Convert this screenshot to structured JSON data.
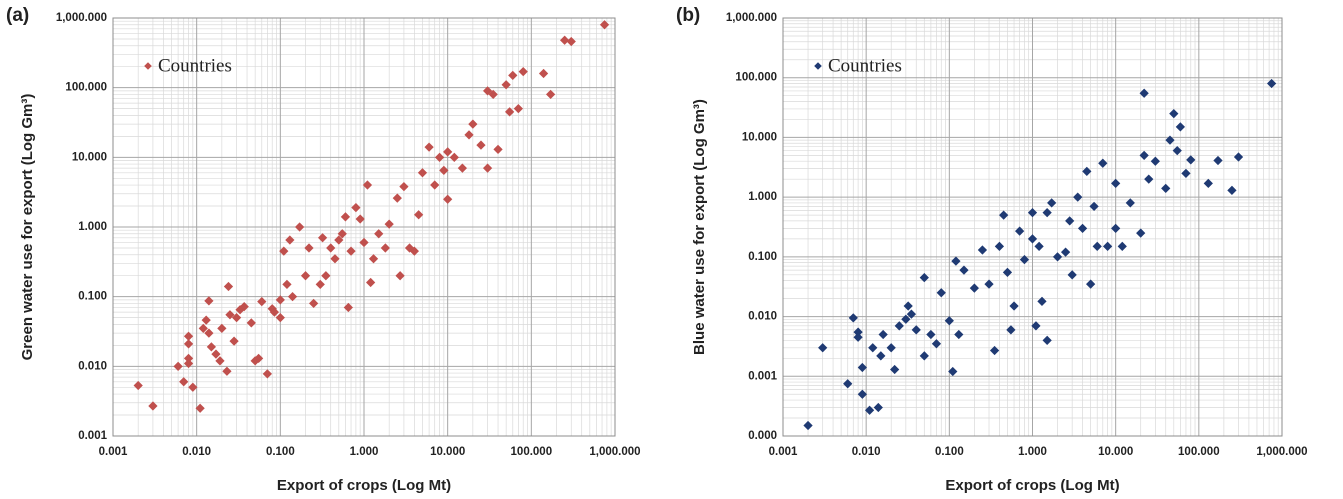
{
  "chart_data": [
    {
      "type": "scatter",
      "panel_label": "(a)",
      "xlabel": "Export of crops (Log Mt)",
      "ylabel": "Green water use for export (Log Gm³)",
      "log_x": true,
      "log_y": true,
      "grid": true,
      "minor_grid": true,
      "legend": "upper left",
      "xlim": [
        0.001,
        1000
      ],
      "ylim": [
        0.001,
        1000
      ],
      "xticks": [
        {
          "value": 0.001,
          "label": "0.001"
        },
        {
          "value": 0.01,
          "label": "0.010"
        },
        {
          "value": 0.1,
          "label": "0.100"
        },
        {
          "value": 1,
          "label": "1.000"
        },
        {
          "value": 10,
          "label": "10.000"
        },
        {
          "value": 100,
          "label": "100.000"
        },
        {
          "value": 1000,
          "label": "1,000.000"
        }
      ],
      "yticks": [
        {
          "value": 0.001,
          "label": "0.001"
        },
        {
          "value": 0.01,
          "label": "0.010"
        },
        {
          "value": 0.1,
          "label": "0.100"
        },
        {
          "value": 1,
          "label": "1.000"
        },
        {
          "value": 10,
          "label": "10.000"
        },
        {
          "value": 100,
          "label": "100.000"
        },
        {
          "value": 1000,
          "label": "1,000.000"
        }
      ],
      "series": [
        {
          "name": "Countries",
          "color": "#c0504d",
          "x": [
            0.002,
            0.003,
            0.006,
            0.007,
            0.008,
            0.008,
            0.008,
            0.008,
            0.009,
            0.011,
            0.012,
            0.013,
            0.014,
            0.014,
            0.015,
            0.017,
            0.019,
            0.02,
            0.023,
            0.024,
            0.025,
            0.028,
            0.03,
            0.033,
            0.037,
            0.045,
            0.05,
            0.055,
            0.06,
            0.07,
            0.08,
            0.085,
            0.1,
            0.1,
            0.11,
            0.12,
            0.13,
            0.14,
            0.17,
            0.2,
            0.22,
            0.25,
            0.3,
            0.32,
            0.35,
            0.4,
            0.45,
            0.5,
            0.55,
            0.6,
            0.65,
            0.7,
            0.8,
            0.9,
            1.0,
            1.1,
            1.2,
            1.3,
            1.5,
            1.8,
            2.0,
            2.5,
            2.7,
            3.0,
            3.5,
            4.0,
            4.5,
            5.0,
            6.0,
            7.0,
            8.0,
            9.0,
            10,
            10,
            12,
            15,
            18,
            20,
            25,
            30,
            30,
            35,
            40,
            50,
            55,
            60,
            70,
            80,
            140,
            170,
            250,
            300,
            750
          ],
          "values": [
            0.0053,
            0.0027,
            0.01,
            0.006,
            0.027,
            0.021,
            0.013,
            0.011,
            0.005,
            0.0025,
            0.035,
            0.046,
            0.087,
            0.03,
            0.019,
            0.015,
            0.012,
            0.035,
            0.0085,
            0.14,
            0.055,
            0.023,
            0.05,
            0.065,
            0.072,
            0.042,
            0.012,
            0.013,
            0.085,
            0.0078,
            0.067,
            0.06,
            0.05,
            0.09,
            0.45,
            0.15,
            0.65,
            0.1,
            1.0,
            0.2,
            0.5,
            0.08,
            0.15,
            0.7,
            0.2,
            0.5,
            0.35,
            0.65,
            0.8,
            1.4,
            0.07,
            0.45,
            1.9,
            1.3,
            0.6,
            4.0,
            0.16,
            0.35,
            0.8,
            0.5,
            1.1,
            2.6,
            0.2,
            3.8,
            0.5,
            0.45,
            1.5,
            6.0,
            14,
            4.0,
            10,
            6.5,
            2.5,
            12,
            10,
            7,
            21,
            30,
            15,
            7,
            90,
            80,
            13,
            110,
            45,
            150,
            50,
            170,
            160,
            80,
            480,
            460,
            800
          ]
        }
      ]
    },
    {
      "type": "scatter",
      "panel_label": "(b)",
      "xlabel": "Export of crops (Log Mt)",
      "ylabel": "Blue water use for export (Log Gm³)",
      "log_x": true,
      "log_y": true,
      "grid": true,
      "minor_grid": true,
      "legend": "upper left",
      "xlim": [
        0.001,
        1000
      ],
      "ylim": [
        0.0001,
        1000
      ],
      "xticks": [
        {
          "value": 0.001,
          "label": "0.001"
        },
        {
          "value": 0.01,
          "label": "0.010"
        },
        {
          "value": 0.1,
          "label": "0.100"
        },
        {
          "value": 1,
          "label": "1.000"
        },
        {
          "value": 10,
          "label": "10.000"
        },
        {
          "value": 100,
          "label": "100.000"
        },
        {
          "value": 1000,
          "label": "1,000.000"
        }
      ],
      "yticks": [
        {
          "value": 0.0001,
          "label": "0.000"
        },
        {
          "value": 0.001,
          "label": "0.001"
        },
        {
          "value": 0.01,
          "label": "0.010"
        },
        {
          "value": 0.1,
          "label": "0.100"
        },
        {
          "value": 1,
          "label": "1.000"
        },
        {
          "value": 10,
          "label": "10.000"
        },
        {
          "value": 100,
          "label": "100.000"
        },
        {
          "value": 1000,
          "label": "1,000.000"
        }
      ],
      "series": [
        {
          "name": "Countries",
          "color": "#1f3a73",
          "x": [
            0.002,
            0.003,
            0.006,
            0.007,
            0.008,
            0.008,
            0.009,
            0.009,
            0.011,
            0.012,
            0.014,
            0.015,
            0.016,
            0.02,
            0.022,
            0.025,
            0.03,
            0.032,
            0.035,
            0.04,
            0.05,
            0.05,
            0.06,
            0.07,
            0.08,
            0.1,
            0.11,
            0.12,
            0.13,
            0.15,
            0.2,
            0.25,
            0.3,
            0.35,
            0.4,
            0.45,
            0.5,
            0.55,
            0.6,
            0.7,
            0.8,
            1.0,
            1.0,
            1.1,
            1.2,
            1.3,
            1.5,
            1.5,
            1.7,
            2.0,
            2.5,
            2.8,
            3.0,
            3.5,
            4.0,
            4.5,
            5.0,
            5.5,
            6.0,
            7.0,
            8.0,
            10,
            10,
            12,
            15,
            20,
            22,
            22,
            25,
            30,
            40,
            45,
            50,
            55,
            60,
            70,
            80,
            130,
            170,
            250,
            300,
            750
          ],
          "values": [
            0.00015,
            0.003,
            0.00075,
            0.0095,
            0.0055,
            0.0045,
            0.0014,
            0.0005,
            0.00027,
            0.003,
            0.0003,
            0.0022,
            0.005,
            0.003,
            0.0013,
            0.007,
            0.009,
            0.015,
            0.011,
            0.006,
            0.045,
            0.0022,
            0.005,
            0.0035,
            0.025,
            0.0085,
            0.0012,
            0.085,
            0.005,
            0.06,
            0.03,
            0.13,
            0.035,
            0.0027,
            0.15,
            0.5,
            0.055,
            0.006,
            0.015,
            0.27,
            0.09,
            0.55,
            0.2,
            0.007,
            0.15,
            0.018,
            0.004,
            0.55,
            0.8,
            0.1,
            0.12,
            0.4,
            0.05,
            1.0,
            0.3,
            2.7,
            0.035,
            0.7,
            0.15,
            3.7,
            0.15,
            1.7,
            0.3,
            0.15,
            0.8,
            0.25,
            55,
            5,
            2,
            4,
            1.4,
            9,
            25,
            6,
            15,
            2.5,
            4.2,
            1.7,
            4.1,
            1.3,
            4.7,
            80
          ]
        }
      ]
    }
  ]
}
